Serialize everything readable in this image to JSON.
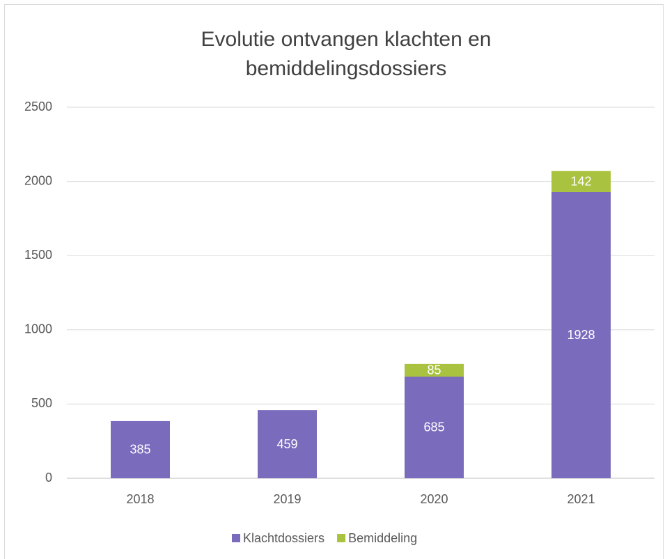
{
  "chart_data": {
    "type": "stacked_bar",
    "title": "Evolutie ontvangen klachten en bemiddelingsdossiers",
    "categories": [
      "2018",
      "2019",
      "2020",
      "2021"
    ],
    "series": [
      {
        "name": "Klachtdossiers",
        "color": "#7a6bbd",
        "values": [
          385,
          459,
          685,
          1928
        ]
      },
      {
        "name": "Bemiddeling",
        "color": "#a9c23f",
        "values": [
          null,
          null,
          85,
          142
        ]
      }
    ],
    "ylim": [
      0,
      2500
    ],
    "yticks": [
      0,
      500,
      1000,
      1500,
      2000,
      2500
    ],
    "grid": true,
    "legend": "bottom"
  }
}
